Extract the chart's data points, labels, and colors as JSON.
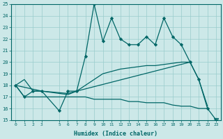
{
  "xlabel": "Humidex (Indice chaleur)",
  "bg_color": "#cce8e8",
  "grid_color": "#99cccc",
  "line_color": "#006666",
  "ylim": [
    15,
    25
  ],
  "xlim": [
    -0.5,
    23.5
  ],
  "yticks": [
    15,
    16,
    17,
    18,
    19,
    20,
    21,
    22,
    23,
    24,
    25
  ],
  "xticks": [
    0,
    1,
    2,
    3,
    5,
    6,
    7,
    8,
    9,
    10,
    11,
    12,
    13,
    14,
    15,
    16,
    17,
    18,
    19,
    20,
    21,
    22,
    23
  ],
  "main_x": [
    0,
    1,
    2,
    3,
    5,
    6,
    7,
    8,
    9,
    10,
    11,
    12,
    13,
    14,
    15,
    16,
    17,
    18,
    19,
    20,
    21,
    22,
    23
  ],
  "main_y": [
    18,
    17,
    17.5,
    17.5,
    15.8,
    17.5,
    17.5,
    20.5,
    25,
    21.8,
    23.8,
    22,
    21.5,
    21.5,
    22.2,
    21.5,
    23.8,
    22.2,
    21.5,
    20,
    18.5,
    16,
    15
  ],
  "upper_x": [
    0,
    1,
    2,
    3,
    6,
    7,
    20,
    21,
    22
  ],
  "upper_y": [
    18,
    18.5,
    17.5,
    17.5,
    17.2,
    17.5,
    20.0,
    18.5,
    16.2
  ],
  "lower_x": [
    0,
    1,
    2,
    3,
    6,
    7,
    8,
    9,
    10,
    11,
    12,
    13,
    14,
    15,
    16,
    17,
    18,
    19,
    20,
    21,
    22
  ],
  "lower_y": [
    18,
    17.0,
    17.0,
    17.0,
    17.0,
    17.0,
    17.0,
    16.8,
    16.8,
    16.8,
    16.8,
    16.6,
    16.6,
    16.5,
    16.5,
    16.5,
    16.3,
    16.2,
    16.2,
    16.0,
    16.0
  ],
  "mid_x": [
    0,
    3,
    6,
    7,
    8,
    9,
    10,
    11,
    12,
    13,
    14,
    15,
    16,
    17,
    18,
    19,
    20
  ],
  "mid_y": [
    18,
    17.5,
    17.3,
    17.5,
    18.0,
    18.5,
    19.0,
    19.2,
    19.4,
    19.5,
    19.6,
    19.7,
    19.7,
    19.8,
    19.9,
    20.0,
    20.0
  ],
  "tri_x": 23,
  "tri_y": 15
}
